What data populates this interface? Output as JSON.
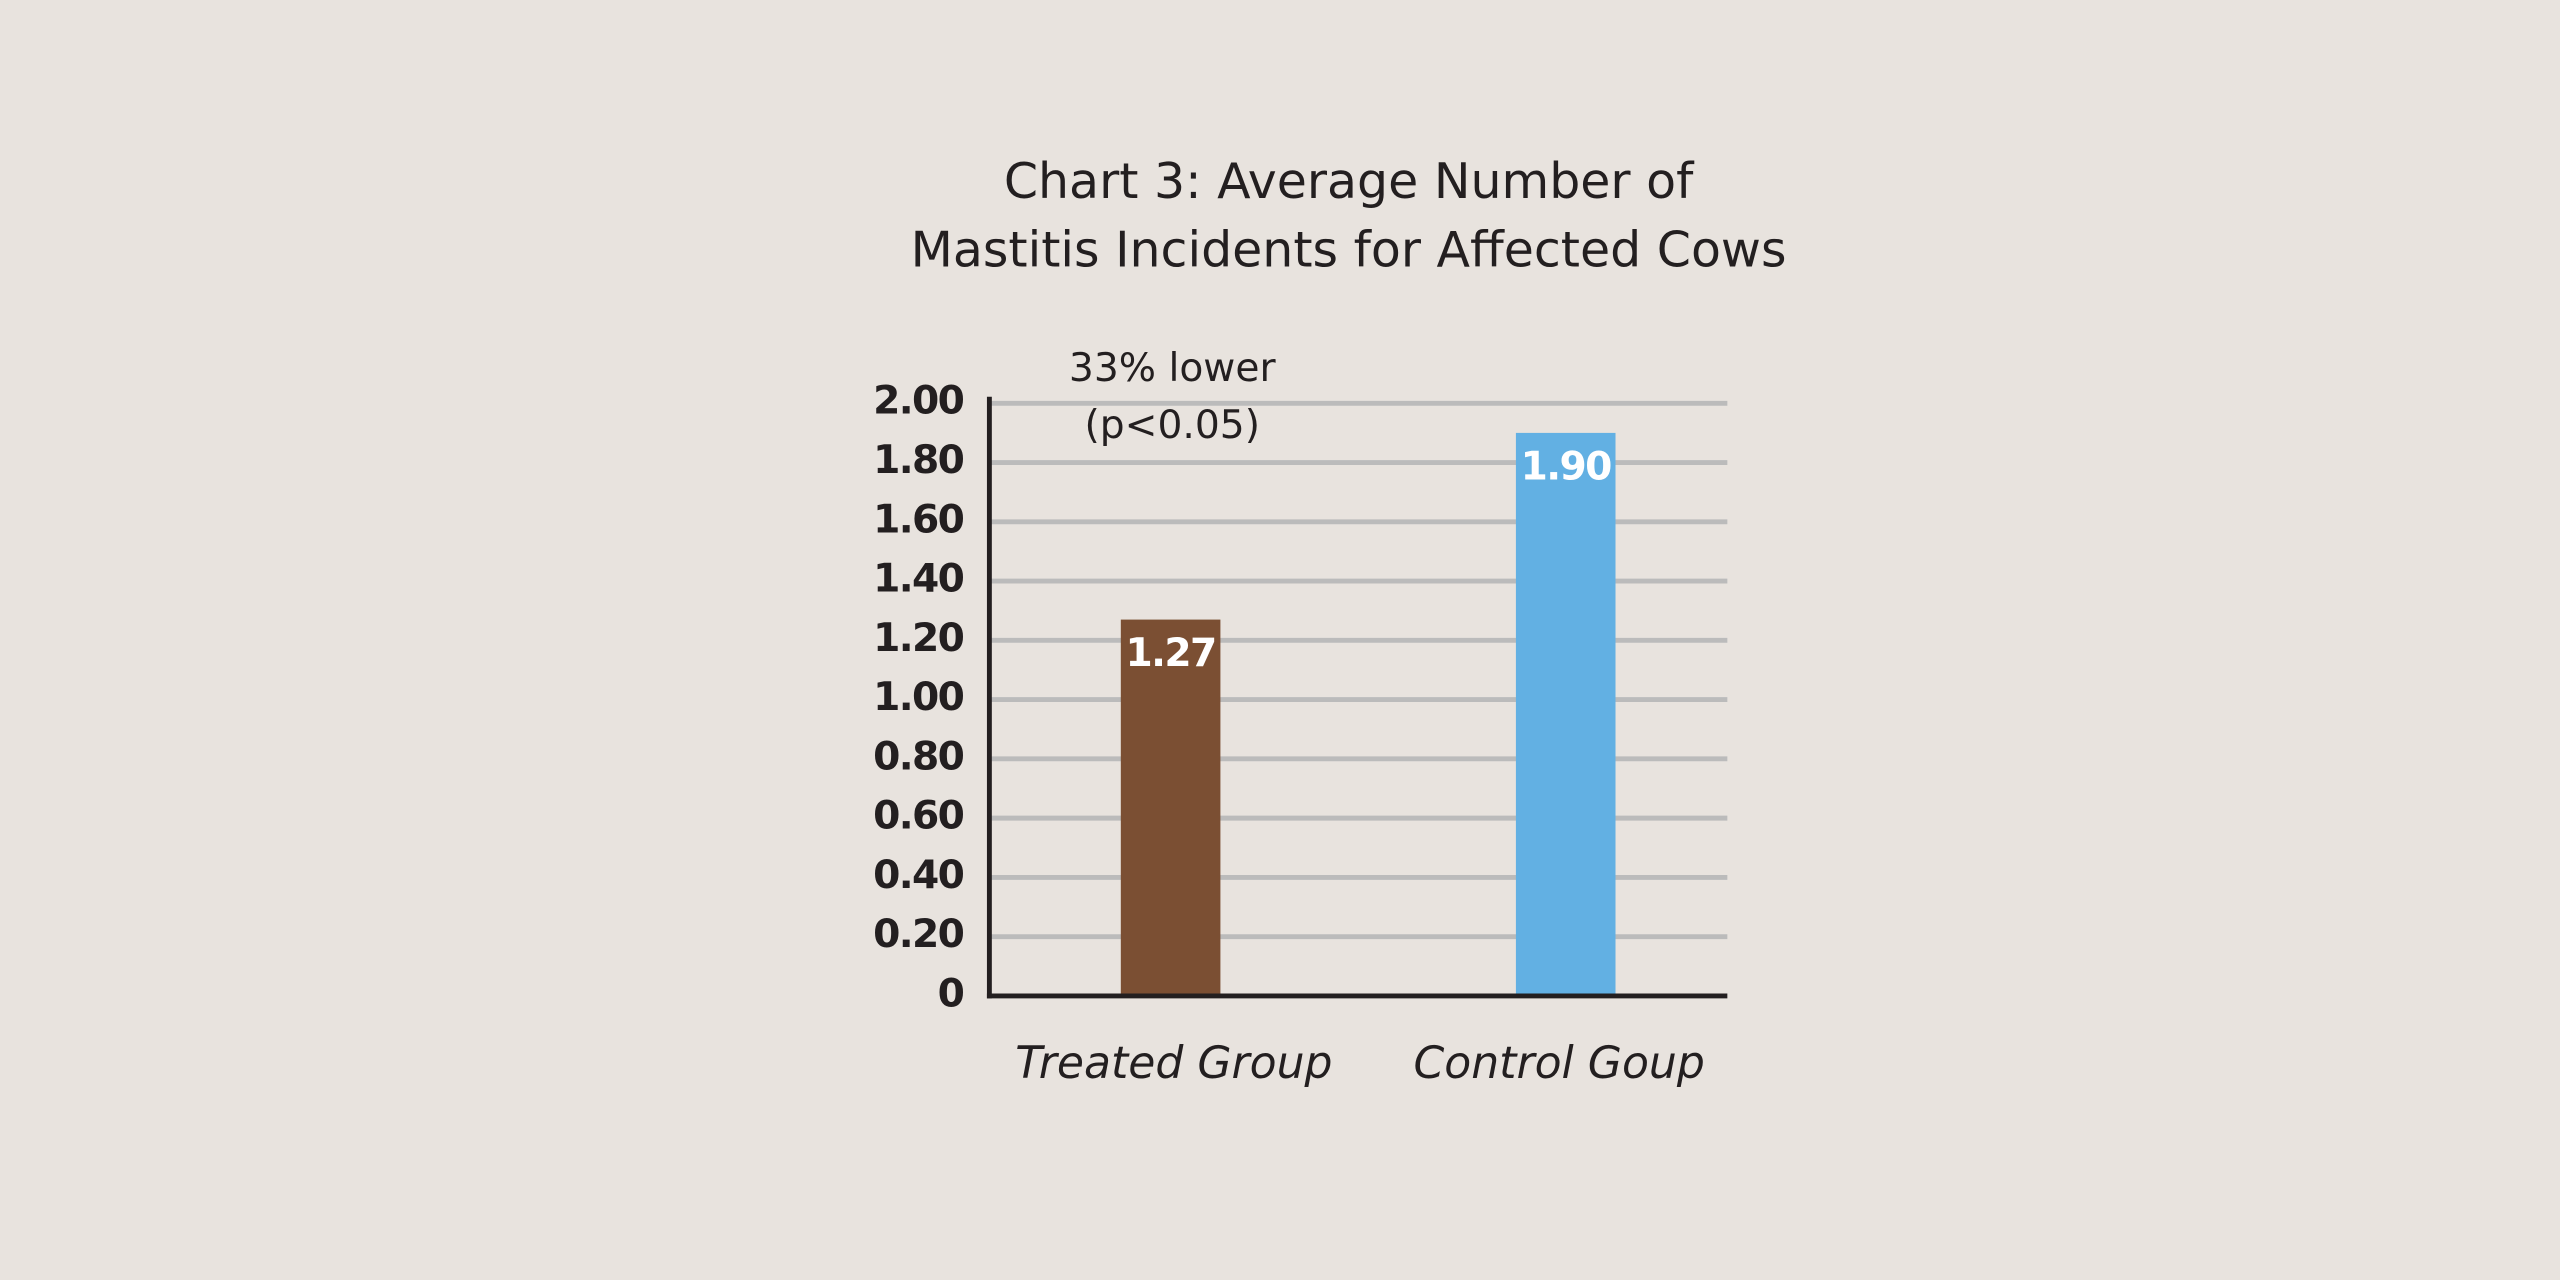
{
  "chart_data": {
    "type": "bar",
    "title": [
      "Chart 3: Average Number of",
      "Mastitis Incidents for Affected Cows"
    ],
    "annotation": [
      "33% lower",
      "(p<0.05)"
    ],
    "categories": [
      "Treated Group",
      "Control Goup"
    ],
    "values": [
      1.27,
      1.9
    ],
    "value_labels": [
      "1.27",
      "1.90"
    ],
    "colors": [
      "#7b4f33",
      "#62b0e3"
    ],
    "ylim": [
      0,
      2
    ],
    "yticks": [
      0,
      {
        "value": 0.2,
        "label": "0.20"
      },
      {
        "value": 0.4,
        "label": "0.40"
      },
      {
        "value": 0.6,
        "label": "0.60"
      },
      {
        "value": 0.8,
        "label": "0.80"
      },
      {
        "value": 1,
        "label": "1.00"
      },
      {
        "value": 1.2,
        "label": "1.20"
      },
      {
        "value": 1.4,
        "label": "1.40"
      },
      {
        "value": 1.6,
        "label": "1.60"
      },
      {
        "value": 1.8,
        "label": "1.80"
      },
      {
        "value": 2,
        "label": "2.00"
      }
    ],
    "grid": true
  }
}
